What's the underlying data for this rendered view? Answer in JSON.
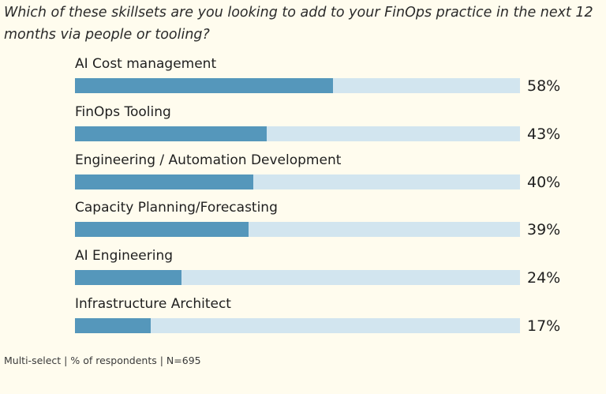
{
  "question": "Which of these skillsets are you looking to add to your FinOps practice in the next 12 months via people or tooling?",
  "footnote": "Multi-select | % of respondents | N=695",
  "colors": {
    "bar": "#5597bb",
    "track": "#d2e5ef",
    "background": "#fffcee"
  },
  "chart_data": {
    "type": "bar",
    "orientation": "horizontal",
    "title": "Which of these skillsets are you looking to add to your FinOps practice in the next 12 months via people or tooling?",
    "categories": [
      "AI Cost management",
      "FinOps Tooling",
      "Engineering / Automation Development",
      "Capacity Planning/Forecasting",
      "AI Engineering",
      "Infrastructure Architect"
    ],
    "values": [
      58,
      43,
      40,
      39,
      24,
      17
    ],
    "value_labels": [
      "58%",
      "43%",
      "40%",
      "39%",
      "24%",
      "17%"
    ],
    "xlim": [
      0,
      100
    ],
    "grid": false,
    "legend": "none"
  }
}
